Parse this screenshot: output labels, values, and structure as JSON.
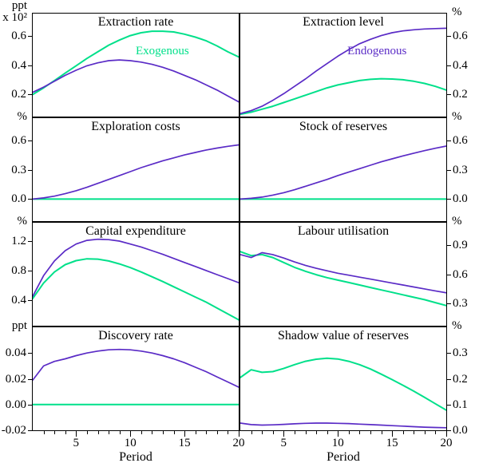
{
  "figure": {
    "colors": {
      "exogenous": "#00E08A",
      "endogenous": "#5A2BC6",
      "axis": "#000000"
    },
    "xlabel": "Period",
    "x_tick_labels": [
      "5",
      "10",
      "15",
      "20"
    ],
    "x_ticks_major": [
      5,
      10,
      15,
      20
    ]
  },
  "chart_data": {
    "type": "line",
    "x": [
      1,
      2,
      3,
      4,
      5,
      6,
      7,
      8,
      9,
      10,
      11,
      12,
      13,
      14,
      15,
      16,
      17,
      18,
      19,
      20
    ],
    "x_label": "Period",
    "x_range": [
      1,
      20
    ],
    "series_names": [
      "Exogenous",
      "Endogenous"
    ],
    "legend_position": "in-panel",
    "panels": [
      {
        "title": "Extraction rate",
        "unit": [
          "ppt",
          "x 10²"
        ],
        "ylim": [
          0.05,
          0.75
        ],
        "ytick_vals": [
          0.6,
          0.4,
          0.2
        ],
        "ytick_labels": [
          "0.6",
          "0.4",
          "0.2"
        ],
        "annotation": {
          "text": "Exogenous",
          "color": "exogenous",
          "x_pct": 50,
          "y_pct": 30
        },
        "series": [
          {
            "name": "Exogenous",
            "color": "exogenous",
            "width": 2,
            "values": [
              0.2,
              0.245,
              0.295,
              0.345,
              0.395,
              0.445,
              0.49,
              0.535,
              0.57,
              0.6,
              0.62,
              0.63,
              0.63,
              0.625,
              0.61,
              0.59,
              0.565,
              0.53,
              0.49,
              0.455
            ]
          },
          {
            "name": "Endogenous",
            "color": "endogenous",
            "width": 1.7,
            "values": [
              0.215,
              0.25,
              0.29,
              0.33,
              0.365,
              0.395,
              0.415,
              0.43,
              0.435,
              0.43,
              0.42,
              0.405,
              0.385,
              0.36,
              0.33,
              0.3,
              0.265,
              0.23,
              0.19,
              0.15
            ]
          }
        ]
      },
      {
        "title": "Extraction level",
        "unit": [
          "%"
        ],
        "ylim": [
          0.05,
          0.75
        ],
        "ytick_vals": [
          0.6,
          0.4,
          0.2
        ],
        "ytick_labels": [
          "0.6",
          "0.4",
          "0.2"
        ],
        "annotation": {
          "text": "Endogenous",
          "color": "endogenous",
          "x_pct": 52,
          "y_pct": 30
        },
        "series": [
          {
            "name": "Exogenous",
            "color": "exogenous",
            "width": 2,
            "values": [
              0.065,
              0.08,
              0.1,
              0.12,
              0.145,
              0.17,
              0.195,
              0.22,
              0.245,
              0.265,
              0.28,
              0.295,
              0.303,
              0.307,
              0.305,
              0.3,
              0.29,
              0.275,
              0.255,
              0.23
            ]
          },
          {
            "name": "Endogenous",
            "color": "endogenous",
            "width": 1.7,
            "values": [
              0.07,
              0.09,
              0.12,
              0.16,
              0.205,
              0.255,
              0.305,
              0.36,
              0.41,
              0.46,
              0.505,
              0.545,
              0.575,
              0.6,
              0.62,
              0.632,
              0.64,
              0.645,
              0.648,
              0.65
            ]
          }
        ]
      },
      {
        "title": "Exploration costs",
        "unit": [
          "%"
        ],
        "ylim": [
          -0.225,
          0.825
        ],
        "ytick_vals": [
          0.6,
          0.3,
          0.0
        ],
        "ytick_labels": [
          "0.6",
          "0.3",
          "0.0"
        ],
        "annotation": null,
        "series": [
          {
            "name": "Exogenous",
            "color": "exogenous",
            "width": 2,
            "values": [
              0,
              0,
              0,
              0,
              0,
              0,
              0,
              0,
              0,
              0,
              0,
              0,
              0,
              0,
              0,
              0,
              0,
              0,
              0,
              0
            ]
          },
          {
            "name": "Endogenous",
            "color": "endogenous",
            "width": 1.7,
            "values": [
              0.0,
              0.012,
              0.03,
              0.055,
              0.085,
              0.12,
              0.16,
              0.2,
              0.24,
              0.28,
              0.32,
              0.355,
              0.39,
              0.42,
              0.45,
              0.475,
              0.5,
              0.52,
              0.538,
              0.552
            ]
          }
        ]
      },
      {
        "title": "Stock of reserves",
        "unit": [
          "%"
        ],
        "ylim": [
          -0.225,
          0.825
        ],
        "ytick_vals": [
          0.6,
          0.3,
          0.0
        ],
        "ytick_labels": [
          "0.6",
          "0.3",
          "0.0"
        ],
        "annotation": null,
        "series": [
          {
            "name": "Exogenous",
            "color": "exogenous",
            "width": 2,
            "values": [
              0,
              0,
              0,
              0,
              0,
              0,
              0,
              0,
              0,
              0,
              0,
              0,
              0,
              0,
              0,
              0,
              0,
              0,
              0,
              0
            ]
          },
          {
            "name": "Endogenous",
            "color": "endogenous",
            "width": 1.7,
            "values": [
              0.0,
              0.008,
              0.02,
              0.04,
              0.065,
              0.095,
              0.13,
              0.165,
              0.2,
              0.24,
              0.275,
              0.31,
              0.345,
              0.38,
              0.41,
              0.44,
              0.468,
              0.494,
              0.518,
              0.54
            ]
          }
        ]
      },
      {
        "title": "Capital expenditure",
        "unit": [
          "%"
        ],
        "ylim": [
          0.05,
          1.45
        ],
        "ytick_vals": [
          1.2,
          0.8,
          0.4
        ],
        "ytick_labels": [
          "1.2",
          "0.8",
          "0.4"
        ],
        "annotation": null,
        "series": [
          {
            "name": "Exogenous",
            "color": "exogenous",
            "width": 2,
            "values": [
              0.42,
              0.63,
              0.78,
              0.88,
              0.935,
              0.96,
              0.955,
              0.93,
              0.89,
              0.84,
              0.78,
              0.715,
              0.65,
              0.58,
              0.51,
              0.44,
              0.37,
              0.29,
              0.21,
              0.13
            ]
          },
          {
            "name": "Endogenous",
            "color": "endogenous",
            "width": 1.7,
            "values": [
              0.45,
              0.73,
              0.93,
              1.07,
              1.16,
              1.21,
              1.225,
              1.22,
              1.2,
              1.16,
              1.12,
              1.07,
              1.02,
              0.965,
              0.91,
              0.855,
              0.8,
              0.745,
              0.69,
              0.635
            ]
          }
        ]
      },
      {
        "title": "Labour utilisation",
        "unit": [
          "%"
        ],
        "ylim": [
          0.075,
          1.125
        ],
        "ytick_vals": [
          0.9,
          0.6,
          0.3
        ],
        "ytick_labels": [
          "0.9",
          "0.6",
          "0.3"
        ],
        "annotation": null,
        "series": [
          {
            "name": "Exogenous",
            "color": "exogenous",
            "width": 2,
            "values": [
              0.83,
              0.79,
              0.8,
              0.77,
              0.72,
              0.67,
              0.63,
              0.595,
              0.565,
              0.54,
              0.515,
              0.49,
              0.465,
              0.44,
              0.415,
              0.39,
              0.365,
              0.34,
              0.31,
              0.28
            ]
          },
          {
            "name": "Endogenous",
            "color": "endogenous",
            "width": 1.7,
            "values": [
              0.8,
              0.77,
              0.82,
              0.8,
              0.765,
              0.725,
              0.69,
              0.66,
              0.635,
              0.61,
              0.59,
              0.57,
              0.55,
              0.53,
              0.51,
              0.49,
              0.47,
              0.45,
              0.43,
              0.41
            ]
          }
        ]
      },
      {
        "title": "Discovery rate",
        "unit": [
          "ppt"
        ],
        "ylim": [
          -0.02,
          0.06
        ],
        "ytick_vals": [
          0.04,
          0.02,
          0.0,
          -0.02
        ],
        "ytick_labels": [
          "0.04",
          "0.02",
          "0.00",
          "-0.02"
        ],
        "annotation": null,
        "series": [
          {
            "name": "Exogenous",
            "color": "exogenous",
            "width": 2,
            "values": [
              0,
              0,
              0,
              0,
              0,
              0,
              0,
              0,
              0,
              0,
              0,
              0,
              0,
              0,
              0,
              0,
              0,
              0,
              0,
              0
            ]
          },
          {
            "name": "Endogenous",
            "color": "endogenous",
            "width": 1.7,
            "values": [
              0.019,
              0.03,
              0.0335,
              0.0355,
              0.038,
              0.04,
              0.0415,
              0.0425,
              0.0428,
              0.0425,
              0.0415,
              0.04,
              0.038,
              0.0355,
              0.0325,
              0.029,
              0.0255,
              0.0215,
              0.0175,
              0.0135
            ]
          }
        ]
      },
      {
        "title": "Shadow value of reserves",
        "unit": [
          "%"
        ],
        "ylim": [
          0.0,
          0.4
        ],
        "ytick_vals": [
          0.3,
          0.2,
          0.1,
          0.0
        ],
        "ytick_labels": [
          "0.3",
          "0.2",
          "0.1",
          "0.0"
        ],
        "annotation": null,
        "series": [
          {
            "name": "Exogenous",
            "color": "exogenous",
            "width": 2,
            "values": [
              0.205,
              0.235,
              0.225,
              0.228,
              0.24,
              0.255,
              0.268,
              0.276,
              0.28,
              0.277,
              0.268,
              0.255,
              0.238,
              0.218,
              0.197,
              0.175,
              0.152,
              0.128,
              0.103,
              0.078
            ]
          },
          {
            "name": "Endogenous",
            "color": "endogenous",
            "width": 1.7,
            "values": [
              0.028,
              0.022,
              0.02,
              0.021,
              0.023,
              0.025,
              0.027,
              0.028,
              0.028,
              0.027,
              0.026,
              0.024,
              0.022,
              0.02,
              0.018,
              0.016,
              0.014,
              0.012,
              0.011,
              0.01
            ]
          }
        ]
      }
    ]
  }
}
